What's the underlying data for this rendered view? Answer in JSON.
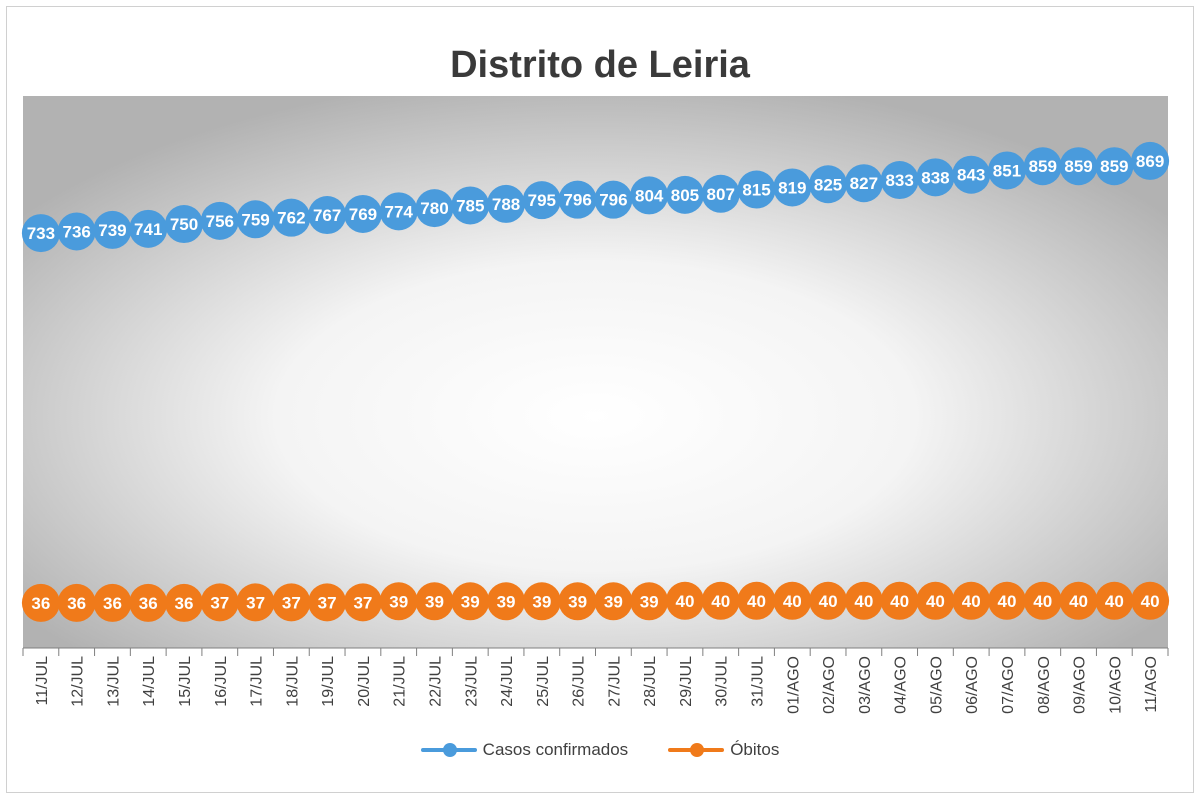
{
  "chart_data": {
    "type": "line",
    "title": "Distrito de Leiria",
    "categories": [
      "11/JUL",
      "12/JUL",
      "13/JUL",
      "14/JUL",
      "15/JUL",
      "16/JUL",
      "17/JUL",
      "18/JUL",
      "19/JUL",
      "20/JUL",
      "21/JUL",
      "22/JUL",
      "23/JUL",
      "24/JUL",
      "25/JUL",
      "26/JUL",
      "27/JUL",
      "28/JUL",
      "29/JUL",
      "30/JUL",
      "31/JUL",
      "01/AGO",
      "02/AGO",
      "03/AGO",
      "04/AGO",
      "05/AGO",
      "06/AGO",
      "07/AGO",
      "08/AGO",
      "09/AGO",
      "10/AGO",
      "11/AGO"
    ],
    "series": [
      {
        "name": "Casos confirmados",
        "color": "#4a9bdc",
        "values": [
          733,
          736,
          739,
          741,
          750,
          756,
          759,
          762,
          767,
          769,
          774,
          780,
          785,
          788,
          795,
          796,
          796,
          804,
          805,
          807,
          815,
          819,
          825,
          827,
          833,
          838,
          843,
          851,
          859,
          859,
          859,
          869
        ]
      },
      {
        "name": "Óbitos",
        "color": "#f07a1a",
        "values": [
          36,
          36,
          36,
          36,
          36,
          37,
          37,
          37,
          37,
          37,
          39,
          39,
          39,
          39,
          39,
          39,
          39,
          39,
          40,
          40,
          40,
          40,
          40,
          40,
          40,
          40,
          40,
          40,
          40,
          40,
          40,
          40
        ]
      }
    ],
    "legend": "bottom",
    "grid": false
  }
}
